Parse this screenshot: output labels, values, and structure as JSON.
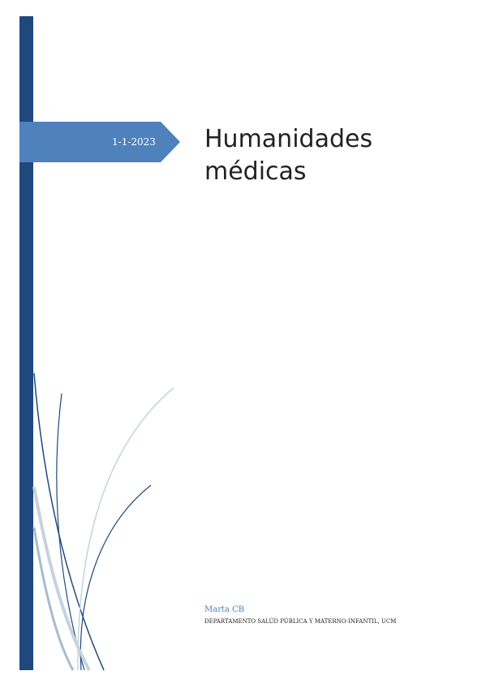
{
  "date": "1-1-2023",
  "title_line1": "Humanidades",
  "title_line2": "médicas",
  "author": "Marta CB",
  "department": "DEPARTAMENTO SALÚD PÚBLICA Y MATERNO-INFANTIL, UCM"
}
